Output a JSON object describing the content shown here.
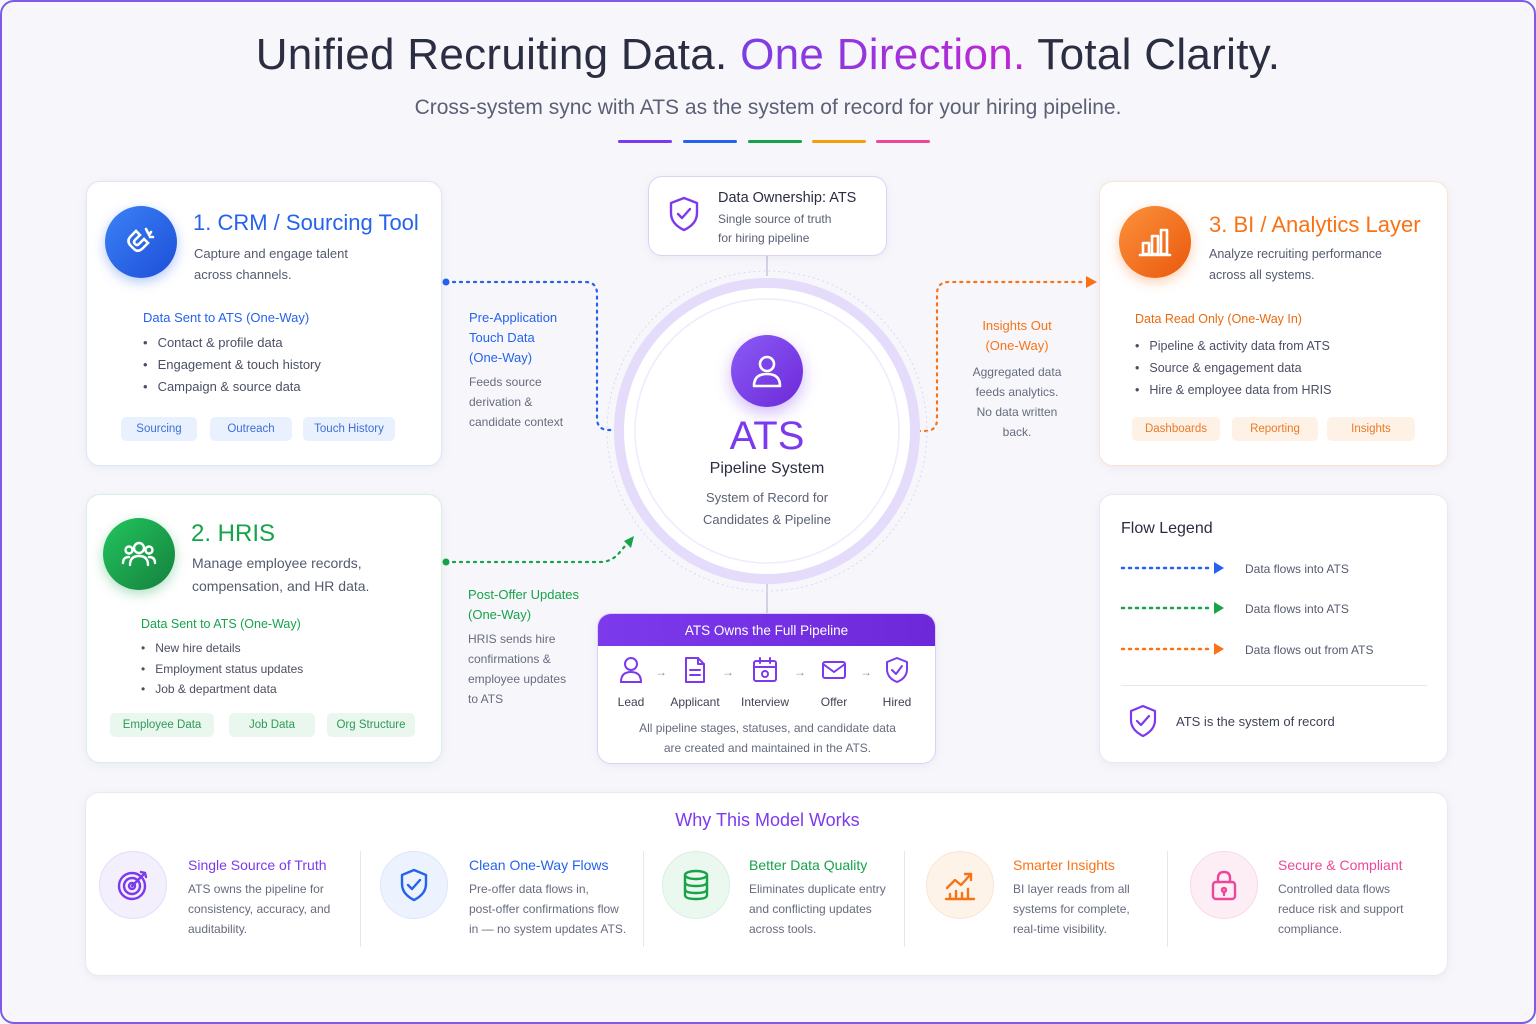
{
  "header": {
    "title_part1": "Unified Recruiting Data.",
    "title_highlight": "One Direction.",
    "title_part2": "Total Clarity.",
    "subtitle": "Cross-system sync with ATS as the system of record for your hiring pipeline.",
    "underline_colors": [
      "#7c3aed",
      "#2563eb",
      "#16a34a",
      "#f59e0b",
      "#ec4899"
    ]
  },
  "colors": {
    "crm": "#2563eb",
    "hris": "#16a34a",
    "bi": "#f97316",
    "ats": "#7c3aed"
  },
  "crm_card": {
    "title": "1. CRM / Sourcing Tool",
    "description_line1": "Capture and engage talent",
    "description_line2": "across channels.",
    "section_heading": "Data Sent to ATS (One-Way)",
    "bullets": [
      "Contact & profile data",
      "Engagement & touch history",
      "Campaign & source data"
    ],
    "chips": [
      "Sourcing",
      "Outreach",
      "Touch History"
    ],
    "icon": "magnet-icon"
  },
  "hris_card": {
    "title": "2. HRIS",
    "description_line1": "Manage employee records,",
    "description_line2": "compensation, and HR data.",
    "section_heading": "Data Sent to ATS (One-Way)",
    "bullets": [
      "New hire details",
      "Employment status updates",
      "Job & department data"
    ],
    "chips": [
      "Employee Data",
      "Job Data",
      "Org Structure"
    ],
    "icon": "people-icon"
  },
  "bi_card": {
    "title": "3. BI / Analytics Layer",
    "description_line1": "Analyze recruiting performance",
    "description_line2": "across all systems.",
    "section_heading": "Data Read Only (One-Way In)",
    "bullets": [
      "Pipeline & activity data from ATS",
      "Source & engagement data",
      "Hire & employee data from HRIS"
    ],
    "chips": [
      "Dashboards",
      "Reporting",
      "Insights"
    ],
    "icon": "bar-chart-icon"
  },
  "ownership": {
    "title": "Data Ownership: ATS",
    "line1": "Single source of truth",
    "line2": "for hiring pipeline"
  },
  "ats": {
    "name": "ATS",
    "subtitle": "Pipeline System",
    "desc_line1": "System of Record for",
    "desc_line2": "Candidates & Pipeline"
  },
  "flows": {
    "pre_application": {
      "title_line1": "Pre-Application",
      "title_line2": "Touch Data",
      "title_line3": "(One-Way)",
      "desc_line1": "Feeds source",
      "desc_line2": "derivation &",
      "desc_line3": "candidate context"
    },
    "post_offer": {
      "title_line1": "Post-Offer Updates",
      "title_line2": "(One-Way)",
      "desc_line1": "HRIS sends hire",
      "desc_line2": "confirmations &",
      "desc_line3": "employee updates",
      "desc_line4": "to ATS"
    },
    "insights_out": {
      "title_line1": "Insights Out",
      "title_line2": "(One-Way)",
      "desc_line1": "Aggregated data",
      "desc_line2": "feeds analytics.",
      "desc_line3": "No data written",
      "desc_line4": "back."
    }
  },
  "pipeline": {
    "header": "ATS Owns the Full Pipeline",
    "stages": [
      "Lead",
      "Applicant",
      "Interview",
      "Offer",
      "Hired"
    ],
    "footer_line1": "All pipeline stages, statuses, and candidate data",
    "footer_line2": "are created and maintained in the ATS."
  },
  "legend": {
    "title": "Flow Legend",
    "rows": [
      {
        "label": "Data flows into ATS",
        "color": "#2563eb"
      },
      {
        "label": "Data flows into ATS",
        "color": "#16a34a"
      },
      {
        "label": "Data flows out from ATS",
        "color": "#f97316"
      }
    ],
    "footer": "ATS is the system of record"
  },
  "why": {
    "title": "Why This Model Works",
    "items": [
      {
        "title": "Single Source of Truth",
        "l1": "ATS owns the pipeline for",
        "l2": "consistency, accuracy, and",
        "l3": "auditability.",
        "color": "#7c3aed",
        "icon": "target-icon"
      },
      {
        "title": "Clean One-Way Flows",
        "l1": "Pre-offer data flows in,",
        "l2": "post-offer confirmations flow",
        "l3": "in — no system updates ATS.",
        "color": "#2563eb",
        "icon": "shield-check-icon"
      },
      {
        "title": "Better Data Quality",
        "l1": "Eliminates duplicate entry",
        "l2": "and conflicting updates",
        "l3": "across tools.",
        "color": "#16a34a",
        "icon": "database-icon"
      },
      {
        "title": "Smarter Insights",
        "l1": "BI layer reads from all",
        "l2": "systems for complete,",
        "l3": "real-time visibility.",
        "color": "#f97316",
        "icon": "trend-chart-icon"
      },
      {
        "title": "Secure & Compliant",
        "l1": "Controlled data flows",
        "l2": "reduce risk and support",
        "l3": "compliance.",
        "color": "#ec4899",
        "icon": "lock-icon"
      }
    ]
  }
}
